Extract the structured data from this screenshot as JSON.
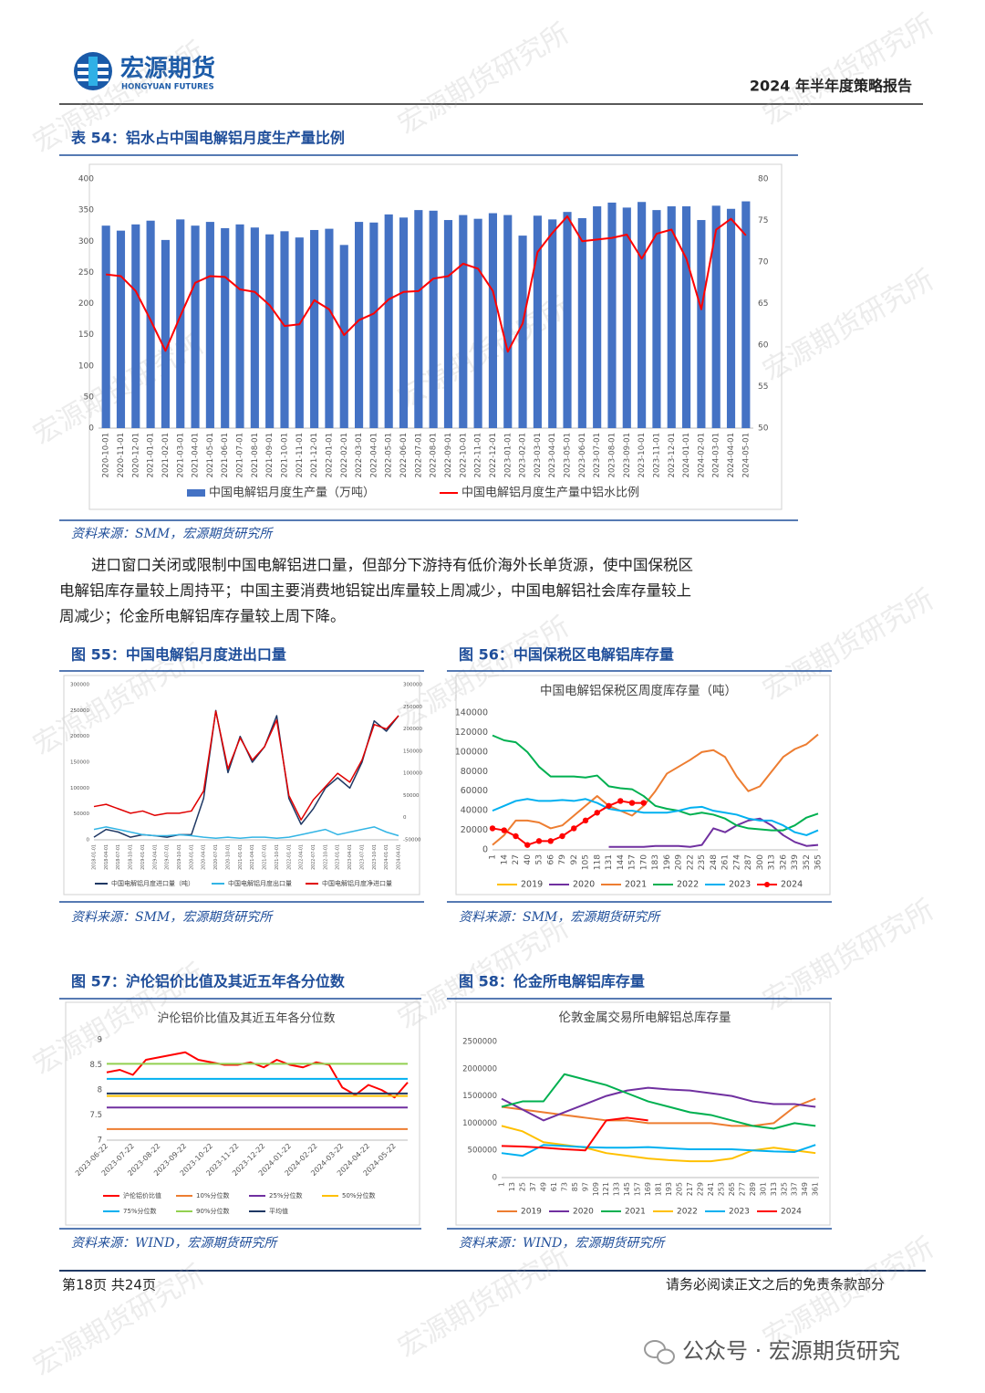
{
  "header": {
    "logo_cn": "宏源期货",
    "logo_en": "HONGYUAN FUTURES",
    "report_title": "2024 年半年度策略报告"
  },
  "watermark": "宏源期货研究所",
  "paragraph": [
    "进口窗口关闭或限制中国电解铝进口量，但部分下游持有低价海外长单货源，使中国保税区",
    "电解铝库存量较上周持平；中国主要消费地铝锭出库量较上周减少，中国电解铝社会库存量较上",
    "周减少；伦金所电解铝库存量较上周下降。"
  ],
  "footer": {
    "page": "第18页 共24页",
    "disclaimer": "请务必阅读正文之后的免责条款部分"
  },
  "wechat": "公众号 · 宏源期货研究",
  "chart_data": [
    {
      "type": "bar",
      "caption": "表 54：铝水占中国电解铝月度生产量比例",
      "source": "资料来源：SMM，宏源期货研究所",
      "grid": false,
      "categories": [
        "2020-10-01",
        "2020-11-01",
        "2020-12-01",
        "2021-01-01",
        "2021-02-01",
        "2021-03-01",
        "2021-04-01",
        "2021-05-01",
        "2021-06-01",
        "2021-07-01",
        "2021-08-01",
        "2021-09-01",
        "2021-10-01",
        "2021-11-01",
        "2021-12-01",
        "2022-01-01",
        "2022-02-01",
        "2022-03-01",
        "2022-04-01",
        "2022-05-01",
        "2022-06-01",
        "2022-07-01",
        "2022-08-01",
        "2022-09-01",
        "2022-10-01",
        "2022-11-01",
        "2022-12-01",
        "2023-01-01",
        "2023-02-01",
        "2023-03-01",
        "2023-04-01",
        "2023-05-01",
        "2023-06-01",
        "2023-07-01",
        "2023-08-01",
        "2023-09-01",
        "2023-10-01",
        "2023-11-01",
        "2023-12-01",
        "2024-01-01",
        "2024-02-01",
        "2024-03-01",
        "2024-04-01",
        "2024-05-01"
      ],
      "series": [
        {
          "name": "中国电解铝月度生产量（万吨）",
          "color": "#4472c4",
          "values": [
            325,
            317,
            327,
            333,
            302,
            335,
            325,
            331,
            321,
            327,
            322,
            311,
            316,
            306,
            318,
            320,
            294,
            331,
            330,
            343,
            338,
            350,
            349,
            334,
            342,
            336,
            345,
            342,
            309,
            341,
            335,
            347,
            337,
            356,
            362,
            354,
            363,
            350,
            356,
            356,
            334,
            357,
            352,
            364
          ]
        },
        {
          "name": "中国电解铝月度生产量中铝水比例",
          "color": "#ff0000",
          "axis": "y2",
          "values": [
            68.5,
            68.3,
            66.5,
            63,
            59.3,
            63.5,
            67.5,
            68.3,
            68.2,
            66.7,
            66.4,
            64.8,
            62.3,
            62.5,
            65.4,
            64.3,
            61.2,
            63,
            63.8,
            65.5,
            66.4,
            66.5,
            68,
            68.3,
            69.8,
            69.2,
            66.5,
            59.2,
            62.6,
            71.2,
            73.5,
            75.5,
            72.5,
            72.7,
            72.9,
            73.3,
            70.4,
            73.4,
            73.9,
            70.4,
            64.3,
            73.9,
            75.2,
            73.2
          ]
        }
      ],
      "ylim": [
        0,
        400
      ],
      "yticks": [
        0,
        50,
        100,
        150,
        200,
        250,
        300,
        350,
        400
      ],
      "y2lim": [
        50,
        80
      ],
      "y2ticks": [
        50,
        55,
        60,
        65,
        70,
        75,
        80
      ]
    },
    {
      "type": "line",
      "caption": "图 55：中国电解铝月度进出口量",
      "source": "资料来源：SMM，宏源期货研究所",
      "grid": false,
      "categories": [
        "2018-01-01",
        "2018-04-01",
        "2018-07-01",
        "2018-10-01",
        "2019-01-01",
        "2019-04-01",
        "2019-07-01",
        "2019-10-01",
        "2020-01-01",
        "2020-04-01",
        "2020-07-01",
        "2020-10-01",
        "2021-01-01",
        "2021-04-01",
        "2021-07-01",
        "2021-10-01",
        "2022-01-01",
        "2022-04-01",
        "2022-07-01",
        "2022-10-01",
        "2023-01-01",
        "2023-04-01",
        "2023-07-01",
        "2023-10-01",
        "2024-01-01",
        "2024-04-01"
      ],
      "series": [
        {
          "name": "中国电解铝月度进口量（吨）",
          "color": "#1f3864",
          "values": [
            5000,
            20000,
            15000,
            5000,
            10000,
            8000,
            5000,
            10000,
            10000,
            80000,
            250000,
            130000,
            200000,
            150000,
            180000,
            240000,
            80000,
            30000,
            60000,
            100000,
            120000,
            100000,
            150000,
            230000,
            210000,
            240000
          ]
        },
        {
          "name": "中国电解铝月度出口量",
          "color": "#33b5e5",
          "values": [
            20000,
            25000,
            20000,
            15000,
            10000,
            8000,
            8000,
            10000,
            8000,
            5000,
            3000,
            5000,
            3000,
            5000,
            5000,
            3000,
            5000,
            10000,
            15000,
            20000,
            10000,
            15000,
            20000,
            25000,
            15000,
            8000
          ]
        },
        {
          "name": "中国电解铝月度净进口量",
          "color": "#e00000",
          "axis": "y2",
          "values": [
            25000,
            30000,
            20000,
            10000,
            15000,
            5000,
            10000,
            10000,
            15000,
            60000,
            240000,
            110000,
            180000,
            130000,
            160000,
            220000,
            50000,
            -5000,
            40000,
            70000,
            100000,
            80000,
            130000,
            210000,
            200000,
            230000
          ]
        }
      ],
      "ylim": [
        0,
        300000
      ],
      "yticks": [
        0,
        50000,
        100000,
        150000,
        200000,
        250000,
        300000
      ],
      "y2lim": [
        -50000,
        300000
      ],
      "y2ticks": [
        -50000,
        0,
        50000,
        100000,
        150000,
        200000,
        250000,
        300000
      ]
    },
    {
      "type": "line",
      "caption": "图 56：中国保税区电解铝库存量",
      "source": "资料来源：SMM，宏源期货研究所",
      "title": "中国电解铝保税区周度库存量（吨）",
      "grid": false,
      "x": [
        1,
        14,
        27,
        40,
        53,
        66,
        79,
        92,
        105,
        118,
        131,
        144,
        157,
        170,
        183,
        196,
        209,
        222,
        235,
        248,
        261,
        274,
        287,
        300,
        313,
        326,
        339,
        352,
        365
      ],
      "xlim": [
        1,
        365
      ],
      "xticks": [
        1,
        14,
        27,
        40,
        53,
        66,
        79,
        92,
        105,
        118,
        131,
        144,
        157,
        170,
        183,
        196,
        209,
        222,
        235,
        248,
        261,
        274,
        287,
        300,
        313,
        326,
        339,
        352,
        365
      ],
      "series": [
        {
          "name": "2019",
          "color": "#ffc000",
          "values": [
            null,
            null,
            null,
            null,
            null,
            null,
            null,
            null,
            null,
            null,
            null,
            null,
            null,
            null,
            null,
            null,
            null,
            null,
            null,
            null,
            null,
            null,
            null,
            null,
            null,
            null,
            null,
            null,
            null
          ]
        },
        {
          "name": "2020",
          "color": "#7030a0",
          "values": [
            null,
            null,
            null,
            null,
            null,
            null,
            null,
            null,
            null,
            null,
            3000,
            3000,
            3000,
            3000,
            4000,
            4000,
            4000,
            3000,
            5000,
            22000,
            18000,
            25000,
            30000,
            32000,
            25000,
            15000,
            8000,
            4000,
            5000
          ]
        },
        {
          "name": "2021",
          "color": "#ed7d31",
          "values": [
            5000,
            15000,
            30000,
            30000,
            28000,
            22000,
            25000,
            35000,
            45000,
            55000,
            45000,
            40000,
            35000,
            45000,
            60000,
            78000,
            85000,
            92000,
            100000,
            102000,
            95000,
            75000,
            60000,
            65000,
            80000,
            95000,
            103000,
            108000,
            118000
          ]
        },
        {
          "name": "2022",
          "color": "#00b050",
          "values": [
            117000,
            112000,
            110000,
            100000,
            85000,
            75000,
            75000,
            75000,
            74000,
            76000,
            65000,
            63000,
            62000,
            55000,
            45000,
            42000,
            40000,
            36000,
            38000,
            36000,
            32000,
            25000,
            22000,
            21000,
            20000,
            20000,
            25000,
            33000,
            37000
          ]
        },
        {
          "name": "2023",
          "color": "#00b0f0",
          "values": [
            40000,
            45000,
            50000,
            52000,
            50000,
            50000,
            51000,
            50000,
            52000,
            48000,
            42000,
            40000,
            40000,
            38000,
            38000,
            38000,
            40000,
            43000,
            44000,
            40000,
            38000,
            36000,
            32000,
            30000,
            30000,
            25000,
            18000,
            15000,
            20000
          ]
        },
        {
          "name": "2024",
          "color": "#ff0000",
          "marker": true,
          "values": [
            22000,
            20000,
            14000,
            5000,
            9000,
            9000,
            14000,
            22000,
            30000,
            38000,
            45000,
            50000,
            48000,
            48000,
            null,
            null,
            null,
            null,
            null,
            null,
            null,
            null,
            null,
            null,
            null,
            null,
            null,
            null,
            null
          ]
        }
      ],
      "ylim": [
        0,
        140000
      ],
      "yticks": [
        0,
        20000,
        40000,
        60000,
        80000,
        100000,
        120000,
        140000
      ]
    },
    {
      "type": "line",
      "caption": "图 57：沪伦铝价比值及其近五年各分位数",
      "source": "资料来源：WIND，宏源期货研究所",
      "title": "沪伦铝价比值及其近五年各分位数",
      "grid": false,
      "categories": [
        "2023-06-22",
        null,
        "2023-07-22",
        null,
        "2023-08-22",
        null,
        "2023-09-22",
        null,
        "2023-10-22",
        null,
        "2023-11-22",
        null,
        "2023-12-22",
        null,
        "2024-01-22",
        null,
        "2024-02-22",
        null,
        "2024-03-22",
        null,
        "2024-04-22",
        null,
        "2024-05-22",
        null
      ],
      "series": [
        {
          "name": "沪伦铝价比值",
          "color": "#ff0000",
          "values": [
            8.35,
            8.4,
            8.3,
            8.6,
            8.65,
            8.7,
            8.75,
            8.6,
            8.55,
            8.5,
            8.5,
            8.55,
            8.45,
            8.6,
            8.5,
            8.45,
            8.55,
            8.5,
            8.05,
            7.9,
            8.1,
            8.0,
            7.85,
            8.15
          ]
        },
        {
          "name": "10%分位数",
          "color": "#ed7d31",
          "value": 7.22
        },
        {
          "name": "25%分位数",
          "color": "#7030a0",
          "value": 7.65
        },
        {
          "name": "50%分位数",
          "color": "#ffc000",
          "value": 7.88
        },
        {
          "name": "75%分位数",
          "color": "#00b0f0",
          "value": 8.22
        },
        {
          "name": "90%分位数",
          "color": "#92d050",
          "value": 8.52
        },
        {
          "name": "平均值",
          "color": "#1f3864",
          "value": 7.93
        }
      ],
      "ylim": [
        7,
        9
      ],
      "yticks": [
        7,
        7.5,
        8,
        8.5,
        9
      ]
    },
    {
      "type": "line",
      "caption": "图 58：伦金所电解铝库存量",
      "source": "资料来源：WIND，宏源期货研究所",
      "title": "伦敦金属交易所电解铝总库存量",
      "grid": false,
      "x": [
        1,
        25,
        49,
        73,
        97,
        121,
        145,
        169,
        193,
        217,
        241,
        265,
        289,
        313,
        337,
        361
      ],
      "xlim": [
        1,
        365
      ],
      "xticks": [
        1,
        13,
        25,
        37,
        49,
        61,
        73,
        85,
        97,
        109,
        121,
        133,
        145,
        157,
        169,
        181,
        193,
        205,
        217,
        229,
        241,
        253,
        265,
        277,
        289,
        301,
        313,
        325,
        337,
        349,
        361
      ],
      "series": [
        {
          "name": "2019",
          "color": "#ed7d31",
          "values": [
            1300000,
            1250000,
            1200000,
            1150000,
            1100000,
            1050000,
            1050000,
            1000000,
            1000000,
            1000000,
            1000000,
            950000,
            950000,
            1000000,
            1300000,
            1450000
          ]
        },
        {
          "name": "2020",
          "color": "#7030a0",
          "values": [
            1450000,
            1250000,
            1050000,
            1200000,
            1350000,
            1500000,
            1600000,
            1650000,
            1620000,
            1600000,
            1550000,
            1500000,
            1400000,
            1350000,
            1350000,
            1300000
          ]
        },
        {
          "name": "2021",
          "color": "#00b050",
          "values": [
            1300000,
            1400000,
            1400000,
            1900000,
            1800000,
            1700000,
            1550000,
            1400000,
            1300000,
            1200000,
            1150000,
            1050000,
            950000,
            900000,
            1000000,
            950000
          ]
        },
        {
          "name": "2022",
          "color": "#ffc000",
          "values": [
            950000,
            850000,
            650000,
            600000,
            550000,
            450000,
            400000,
            350000,
            320000,
            300000,
            300000,
            350000,
            500000,
            550000,
            500000,
            450000
          ]
        },
        {
          "name": "2023",
          "color": "#00b0f0",
          "values": [
            450000,
            400000,
            600000,
            580000,
            560000,
            550000,
            550000,
            560000,
            540000,
            520000,
            520000,
            520000,
            500000,
            480000,
            470000,
            600000
          ]
        },
        {
          "name": "2024",
          "color": "#ff0000",
          "values": [
            580000,
            570000,
            550000,
            520000,
            500000,
            1050000,
            1100000,
            1050000,
            null,
            null,
            null,
            null,
            null,
            null,
            null,
            null
          ]
        }
      ],
      "ylim": [
        0,
        2500000
      ],
      "yticks": [
        0,
        500000,
        1000000,
        1500000,
        2000000,
        2500000
      ]
    }
  ]
}
